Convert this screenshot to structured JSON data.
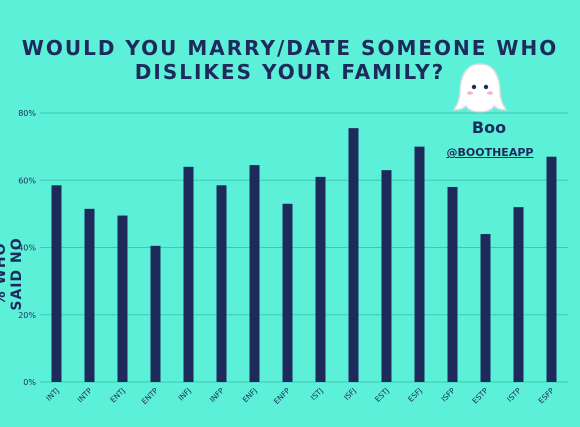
{
  "title_line1": "WOULD YOU MARRY/DATE SOMEONE WHO",
  "title_line2": "DISLIKES YOUR FAMILY?",
  "brand": {
    "name": "Boo",
    "handle": "@BOOTHEAPP",
    "logo_icon": "ghost-icon"
  },
  "colors": {
    "background": "#5cf0d8",
    "bar": "#1f2a5c",
    "grid": "#3cc9b3",
    "text": "#1f2a5c"
  },
  "chart_data": {
    "type": "bar",
    "categories": [
      "INTJ",
      "INTP",
      "ENTJ",
      "ENTP",
      "INFJ",
      "INFP",
      "ENFJ",
      "ENFP",
      "ISTJ",
      "ISFJ",
      "ESTJ",
      "ESFJ",
      "ISFP",
      "ESTP",
      "ISTP",
      "ESFP"
    ],
    "values": [
      58.5,
      51.5,
      49.5,
      40.5,
      64,
      58.5,
      64.5,
      53,
      61,
      75.5,
      63,
      70,
      58,
      44,
      52,
      67
    ],
    "ylabel": "% WHO SAID NO",
    "xlabel": "",
    "ylim": [
      0,
      80
    ],
    "yticks": [
      0,
      20,
      40,
      60,
      80
    ],
    "ytick_labels": [
      "0%",
      "20%",
      "40%",
      "60%",
      "80%"
    ],
    "grid": true,
    "legend": "none"
  }
}
